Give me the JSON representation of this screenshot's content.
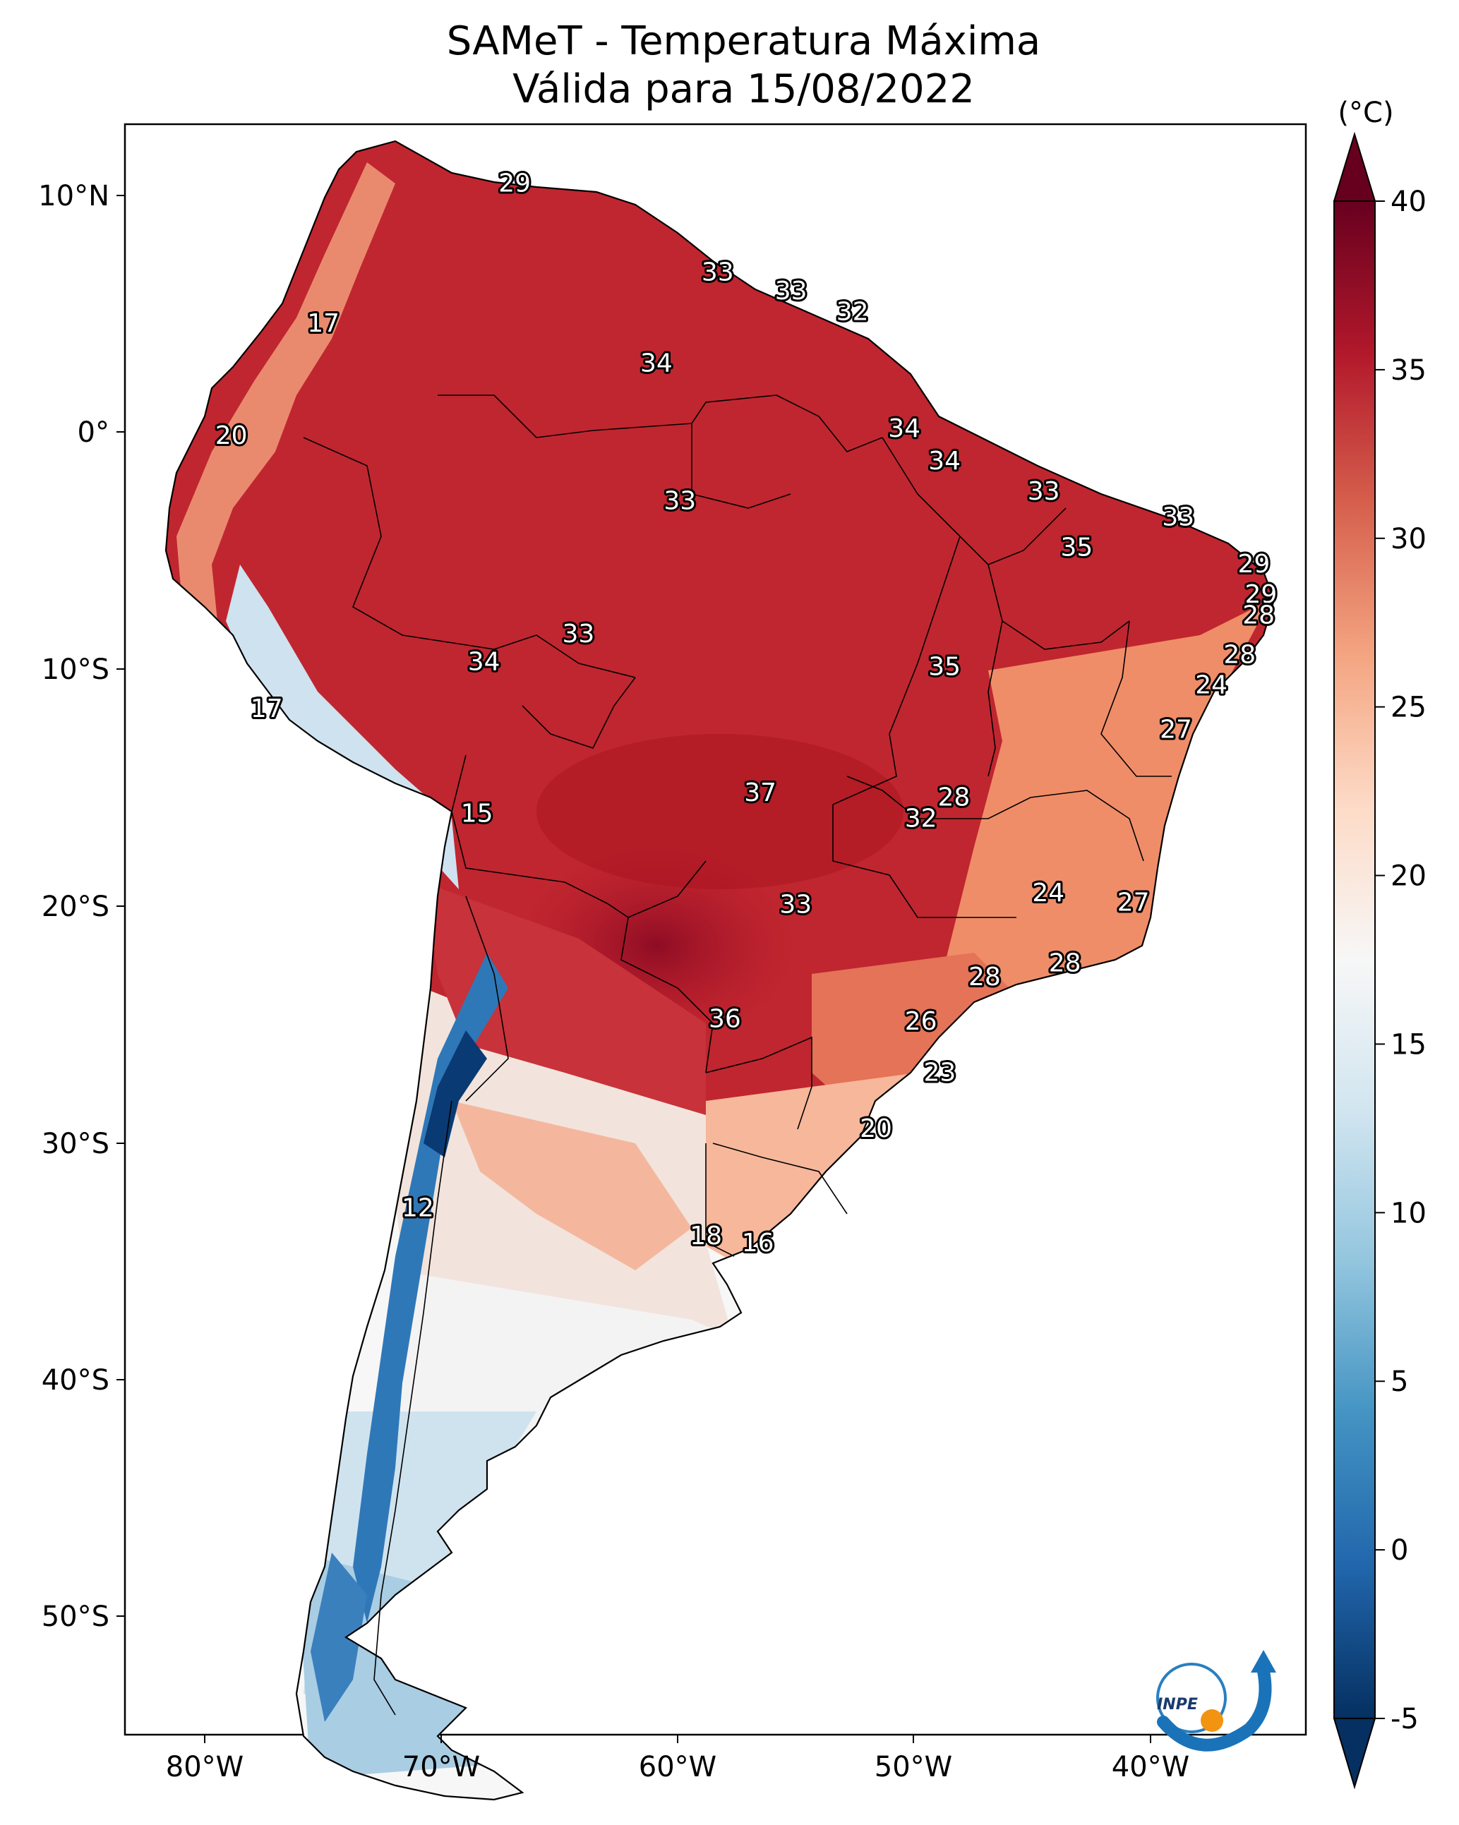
{
  "title": {
    "line1": "SAMeT - Temperatura Máxima",
    "line2": "Válida para 15/08/2022"
  },
  "axes": {
    "lon_ticks": [
      "80°W",
      "70°W",
      "60°W",
      "50°W",
      "40°W"
    ],
    "lat_ticks": [
      "10°N",
      "0°",
      "10°S",
      "20°S",
      "30°S",
      "40°S",
      "50°S"
    ],
    "lon_range": [
      -83,
      -33
    ],
    "lat_range": [
      -56,
      13
    ]
  },
  "colorbar": {
    "unit": "(°C)",
    "min": -5,
    "max": 40,
    "ticks": [
      "40",
      "35",
      "30",
      "25",
      "20",
      "15",
      "10",
      "5",
      "0",
      "-5"
    ],
    "colors": [
      "#053061",
      "#2166ac",
      "#4393c3",
      "#92c5de",
      "#d1e5f0",
      "#f7f7f7",
      "#fddbc7",
      "#f4a582",
      "#d6604d",
      "#b2182b",
      "#67001f"
    ]
  },
  "map": {
    "land_color_scale": "temperature",
    "station_labels": [
      {
        "text": "29",
        "lon": -66.5,
        "lat": 10.5
      },
      {
        "text": "17",
        "lon": -74.6,
        "lat": 4.5
      },
      {
        "text": "33",
        "lon": -57.9,
        "lat": 6.7
      },
      {
        "text": "33",
        "lon": -54.8,
        "lat": 5.9
      },
      {
        "text": "32",
        "lon": -52.2,
        "lat": 5.0
      },
      {
        "text": "34",
        "lon": -60.5,
        "lat": 2.8
      },
      {
        "text": "20",
        "lon": -78.5,
        "lat": -0.3
      },
      {
        "text": "34",
        "lon": -50.0,
        "lat": 0.0
      },
      {
        "text": "34",
        "lon": -48.3,
        "lat": -1.4
      },
      {
        "text": "33",
        "lon": -59.5,
        "lat": -3.1
      },
      {
        "text": "33",
        "lon": -44.1,
        "lat": -2.7
      },
      {
        "text": "33",
        "lon": -38.4,
        "lat": -3.8
      },
      {
        "text": "35",
        "lon": -42.7,
        "lat": -5.1
      },
      {
        "text": "29",
        "lon": -35.2,
        "lat": -5.8
      },
      {
        "text": "29",
        "lon": -34.9,
        "lat": -7.1
      },
      {
        "text": "28",
        "lon": -35.0,
        "lat": -8.0
      },
      {
        "text": "33",
        "lon": -63.8,
        "lat": -8.8
      },
      {
        "text": "34",
        "lon": -67.8,
        "lat": -10.0
      },
      {
        "text": "35",
        "lon": -48.3,
        "lat": -10.2
      },
      {
        "text": "28",
        "lon": -35.8,
        "lat": -9.7
      },
      {
        "text": "24",
        "lon": -37.0,
        "lat": -11.0
      },
      {
        "text": "27",
        "lon": -38.5,
        "lat": -12.9
      },
      {
        "text": "17",
        "lon": -77.0,
        "lat": -12.0
      },
      {
        "text": "37",
        "lon": -56.1,
        "lat": -15.6
      },
      {
        "text": "28",
        "lon": -47.9,
        "lat": -15.8
      },
      {
        "text": "32",
        "lon": -49.3,
        "lat": -16.7
      },
      {
        "text": "15",
        "lon": -68.1,
        "lat": -16.5
      },
      {
        "text": "24",
        "lon": -43.9,
        "lat": -19.9
      },
      {
        "text": "27",
        "lon": -40.3,
        "lat": -20.3
      },
      {
        "text": "33",
        "lon": -54.6,
        "lat": -20.4
      },
      {
        "text": "28",
        "lon": -46.6,
        "lat": -23.5
      },
      {
        "text": "28",
        "lon": -43.2,
        "lat": -22.9
      },
      {
        "text": "36",
        "lon": -57.6,
        "lat": -25.3
      },
      {
        "text": "26",
        "lon": -49.3,
        "lat": -25.4
      },
      {
        "text": "23",
        "lon": -48.5,
        "lat": -27.6
      },
      {
        "text": "20",
        "lon": -51.2,
        "lat": -30.0
      },
      {
        "text": "12",
        "lon": -70.6,
        "lat": -33.4
      },
      {
        "text": "18",
        "lon": -58.4,
        "lat": -34.6
      },
      {
        "text": "16",
        "lon": -56.2,
        "lat": -34.9
      }
    ]
  },
  "logo": {
    "text": "INPE"
  }
}
